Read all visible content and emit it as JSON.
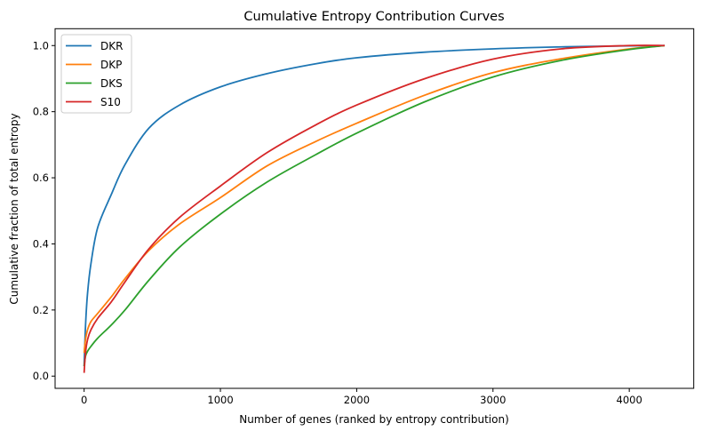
{
  "chart_data": {
    "type": "line",
    "title": "Cumulative Entropy Contribution Curves",
    "xlabel": "Number of genes (ranked by entropy contribution)",
    "ylabel": "Cumulative fraction of total entropy",
    "xlim": [
      -213,
      4473
    ],
    "ylim": [
      -0.037,
      1.051
    ],
    "xticks": [
      0,
      1000,
      2000,
      3000,
      4000
    ],
    "xtick_labels": [
      "0",
      "1000",
      "2000",
      "3000",
      "4000"
    ],
    "yticks": [
      0.0,
      0.2,
      0.4,
      0.6,
      0.8,
      1.0
    ],
    "ytick_labels": [
      "0.0",
      "0.2",
      "0.4",
      "0.6",
      "0.8",
      "1.0"
    ],
    "grid": false,
    "legend_position": "upper-left",
    "x": [
      0,
      10,
      25,
      50,
      100,
      200,
      300,
      475,
      700,
      1000,
      1342,
      1700,
      2000,
      2500,
      3000,
      3500,
      4000,
      4260
    ],
    "series": [
      {
        "name": "DKR",
        "color": "#1f77b4",
        "values": [
          0.03,
          0.15,
          0.25,
          0.34,
          0.45,
          0.55,
          0.64,
          0.75,
          0.82,
          0.875,
          0.915,
          0.945,
          0.963,
          0.98,
          0.99,
          0.996,
          0.999,
          1.0
        ]
      },
      {
        "name": "DKP",
        "color": "#ff7f0e",
        "values": [
          0.07,
          0.11,
          0.14,
          0.165,
          0.19,
          0.24,
          0.295,
          0.38,
          0.46,
          0.54,
          0.636,
          0.71,
          0.765,
          0.85,
          0.918,
          0.96,
          0.99,
          1.0
        ]
      },
      {
        "name": "DKS",
        "color": "#2ca02c",
        "values": [
          0.03,
          0.06,
          0.075,
          0.09,
          0.115,
          0.155,
          0.2,
          0.29,
          0.39,
          0.49,
          0.587,
          0.67,
          0.735,
          0.83,
          0.905,
          0.955,
          0.988,
          1.0
        ]
      },
      {
        "name": "S10",
        "color": "#d62728",
        "values": [
          0.01,
          0.07,
          0.11,
          0.14,
          0.175,
          0.225,
          0.285,
          0.385,
          0.48,
          0.575,
          0.676,
          0.76,
          0.82,
          0.9,
          0.959,
          0.99,
          1.0,
          1.0
        ]
      }
    ]
  }
}
